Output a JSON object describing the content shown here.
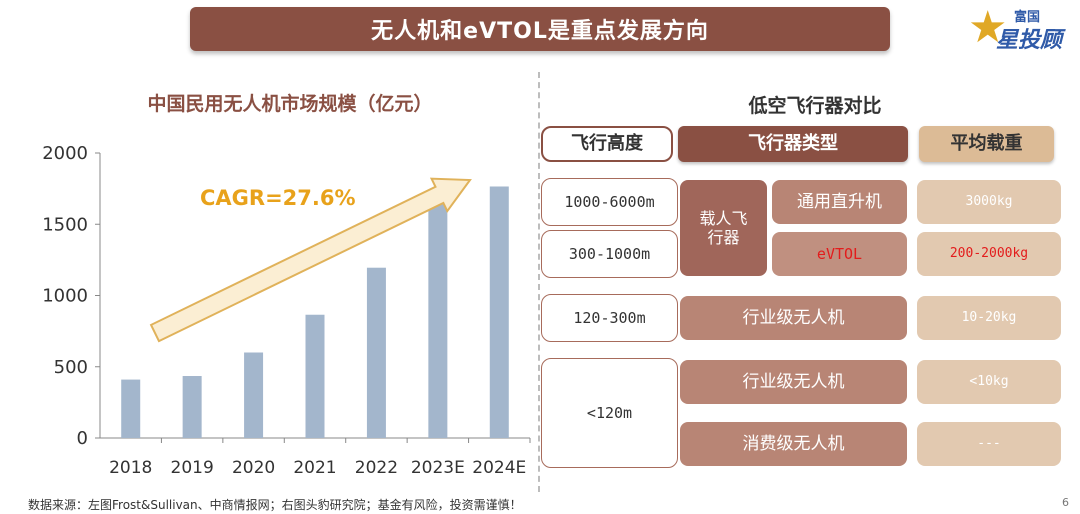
{
  "header": {
    "title": "无人机和eVTOL是重点发展方向"
  },
  "logo": {
    "small": "富国",
    "big": "星投顾"
  },
  "chart_data": {
    "type": "bar",
    "title": "中国民用无人机市场规模（亿元）",
    "categories": [
      "2018",
      "2019",
      "2020",
      "2021",
      "2022",
      "2023E",
      "2024E"
    ],
    "values": [
      410,
      435,
      600,
      865,
      1195,
      1650,
      1765
    ],
    "ylim": [
      0,
      2000
    ],
    "yticks": [
      0,
      500,
      1000,
      1500,
      2000
    ],
    "annotation": "CAGR=27.6%",
    "colors": {
      "bar": "#a3b6cc",
      "annotation": "#e8a21b",
      "arrow_fill": "#fbeed3",
      "arrow_stroke": "#e0b25a"
    }
  },
  "comparison": {
    "title": "低空飞行器对比",
    "headers": {
      "altitude": "飞行高度",
      "type": "飞行器类型",
      "load": "平均载重"
    },
    "altitudes": [
      "1000-6000m",
      "300-1000m",
      "120-300m",
      "<120m"
    ],
    "group_label": "载人飞行器",
    "types": [
      "通用直升机",
      "eVTOL",
      "行业级无人机",
      "行业级无人机",
      "消费级无人机"
    ],
    "loads": [
      "3000kg",
      "200-2000kg",
      "10-20kg",
      "<10kg",
      "---"
    ],
    "colors": {
      "primary": "#8a5043",
      "light": "#dcbb96",
      "highlight": "#e31c1c"
    }
  },
  "footer": {
    "source": "数据来源：左图Frost&Sullivan、中商情报网；右图头豹研究院；基金有风险，投资需谨慎！",
    "page": "6"
  }
}
